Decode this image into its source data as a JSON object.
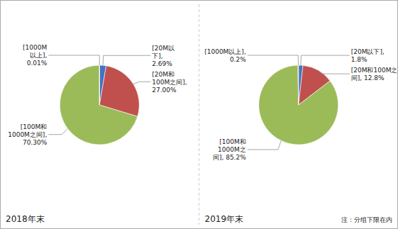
{
  "chart_data": [
    {
      "type": "pie",
      "values": [
        2.69,
        27.0,
        70.3,
        0.01
      ],
      "value_labels": [
        "[20M以\n下],\n2.69%",
        "[20M和\n100M之间],\n27.00%",
        "[100M和\n1000M之间],\n70.30%",
        "[1000M\n以上],\n0.01%"
      ],
      "colors": [
        "#4472c4",
        "#c0504d",
        "#9bbb59",
        "#9bbb59"
      ],
      "data_labels": true,
      "annotations": [
        "2018年末"
      ]
    },
    {
      "type": "pie",
      "values": [
        1.8,
        12.8,
        85.2,
        0.2
      ],
      "value_labels": [
        "[20M以下],\n1.8%",
        "[20M和100M之\n间], 12.8%",
        "[100M和\n1000M之\n间], 85.2%",
        "[1000M以上],\n0.2%"
      ],
      "colors": [
        "#4472c4",
        "#c0504d",
        "#9bbb59",
        "#9bbb59"
      ],
      "data_labels": true,
      "annotations": [
        "2019年末",
        "注：分组下限在内"
      ]
    }
  ]
}
